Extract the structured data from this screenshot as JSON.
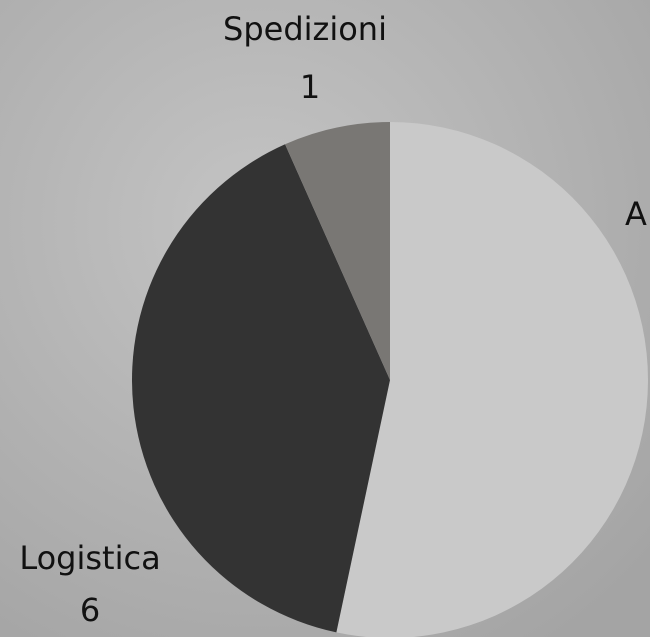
{
  "chart_data": {
    "type": "pie",
    "categories": [
      "A",
      "Logistica",
      "Spedizioni"
    ],
    "values": [
      8,
      6,
      1
    ],
    "colors": [
      "#c9c9c9",
      "#333333",
      "#797774"
    ]
  }
}
